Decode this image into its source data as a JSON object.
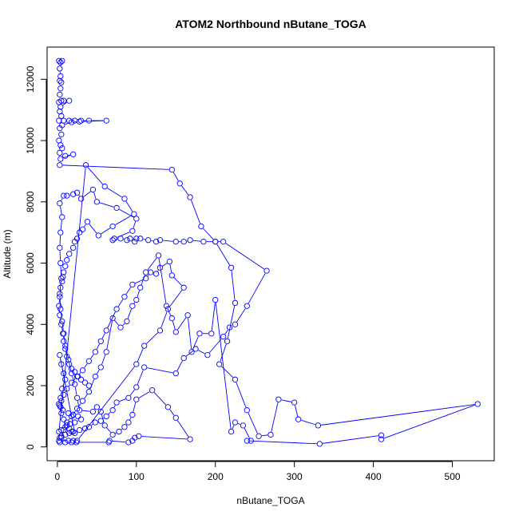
{
  "chart_data": {
    "type": "line",
    "title": "ATOM2 Northbound nButane_TOGA",
    "xlabel": "nButane_TOGA",
    "ylabel": "Altitude (m)",
    "xlim": [
      -13,
      553
    ],
    "ylim": [
      -450,
      13050
    ],
    "xticks": [
      0,
      100,
      200,
      300,
      400,
      500
    ],
    "yticks": [
      0,
      2000,
      4000,
      6000,
      8000,
      10000,
      12000
    ],
    "grid": false,
    "marker": "open-circle",
    "color": "#0000ff",
    "series": [
      {
        "name": "nButane_TOGA",
        "points": [
          [
            2,
            12600
          ],
          [
            4,
            12550
          ],
          [
            6,
            12600
          ],
          [
            3,
            12350
          ],
          [
            4,
            12100
          ],
          [
            3,
            11950
          ],
          [
            5,
            11900
          ],
          [
            4,
            11700
          ],
          [
            3,
            11500
          ],
          [
            5,
            11300
          ],
          [
            2,
            11250
          ],
          [
            8,
            11300
          ],
          [
            15,
            11300
          ],
          [
            4,
            11100
          ],
          [
            3,
            10950
          ],
          [
            5,
            10800
          ],
          [
            2,
            10650
          ],
          [
            8,
            10650
          ],
          [
            15,
            10650
          ],
          [
            22,
            10650
          ],
          [
            30,
            10650
          ],
          [
            40,
            10650
          ],
          [
            62,
            10650
          ],
          [
            28,
            10620
          ],
          [
            18,
            10600
          ],
          [
            6,
            10500
          ],
          [
            3,
            10400
          ],
          [
            5,
            10200
          ],
          [
            2,
            10000
          ],
          [
            4,
            9850
          ],
          [
            6,
            9750
          ],
          [
            3,
            9600
          ],
          [
            10,
            9500
          ],
          [
            20,
            9550
          ],
          [
            4,
            9400
          ],
          [
            3,
            9200
          ],
          [
            145,
            9050
          ],
          [
            155,
            8600
          ],
          [
            168,
            8150
          ],
          [
            182,
            7200
          ],
          [
            200,
            6700
          ],
          [
            220,
            5850
          ],
          [
            225,
            4700
          ],
          [
            215,
            3450
          ],
          [
            205,
            2700
          ],
          [
            225,
            2200
          ],
          [
            240,
            1200
          ],
          [
            255,
            350
          ],
          [
            270,
            400
          ],
          [
            280,
            1550
          ],
          [
            300,
            1450
          ],
          [
            305,
            900
          ],
          [
            330,
            700
          ],
          [
            532,
            1400
          ],
          [
            410,
            250
          ],
          [
            410,
            380
          ],
          [
            332,
            100
          ],
          [
            240,
            200
          ],
          [
            245,
            200
          ],
          [
            235,
            700
          ],
          [
            225,
            800
          ],
          [
            220,
            500
          ],
          [
            200,
            4800
          ],
          [
            195,
            3700
          ],
          [
            180,
            3700
          ],
          [
            170,
            3100
          ],
          [
            165,
            4300
          ],
          [
            150,
            3750
          ],
          [
            145,
            4200
          ],
          [
            138,
            4600
          ],
          [
            128,
            6250
          ],
          [
            112,
            5700
          ],
          [
            105,
            5200
          ],
          [
            100,
            4800
          ],
          [
            95,
            4600
          ],
          [
            88,
            4100
          ],
          [
            80,
            3900
          ],
          [
            70,
            4200
          ],
          [
            62,
            3100
          ],
          [
            55,
            2600
          ],
          [
            48,
            2300
          ],
          [
            40,
            1800
          ],
          [
            32,
            1500
          ],
          [
            25,
            1250
          ],
          [
            18,
            1000
          ],
          [
            12,
            800
          ],
          [
            8,
            550
          ],
          [
            5,
            300
          ],
          [
            3,
            150
          ],
          [
            10,
            150
          ],
          [
            18,
            150
          ],
          [
            24,
            150
          ],
          [
            65,
            150
          ],
          [
            66,
            200
          ],
          [
            90,
            150
          ],
          [
            95,
            200
          ],
          [
            98,
            300
          ],
          [
            103,
            350
          ],
          [
            168,
            250
          ],
          [
            150,
            950
          ],
          [
            140,
            1300
          ],
          [
            120,
            1850
          ],
          [
            100,
            1550
          ],
          [
            95,
            1050
          ],
          [
            90,
            800
          ],
          [
            85,
            650
          ],
          [
            78,
            500
          ],
          [
            70,
            400
          ],
          [
            60,
            700
          ],
          [
            55,
            1150
          ],
          [
            50,
            1300
          ],
          [
            45,
            1150
          ],
          [
            28,
            1200
          ],
          [
            25,
            1600
          ],
          [
            22,
            2050
          ],
          [
            18,
            2400
          ],
          [
            14,
            2850
          ],
          [
            10,
            3300
          ],
          [
            8,
            3700
          ],
          [
            6,
            4100
          ],
          [
            4,
            4500
          ],
          [
            3,
            5000
          ],
          [
            5,
            5500
          ],
          [
            4,
            6000
          ],
          [
            3,
            6500
          ],
          [
            4,
            7000
          ],
          [
            6,
            7500
          ],
          [
            3,
            7950
          ],
          [
            8,
            8200
          ],
          [
            12,
            8200
          ],
          [
            20,
            8250
          ],
          [
            25,
            8300
          ],
          [
            30,
            8100
          ],
          [
            45,
            8400
          ],
          [
            50,
            8000
          ],
          [
            75,
            7800
          ],
          [
            100,
            7450
          ],
          [
            95,
            7050
          ],
          [
            72,
            6800
          ],
          [
            70,
            6750
          ],
          [
            80,
            6800
          ],
          [
            88,
            6750
          ],
          [
            92,
            6800
          ],
          [
            98,
            6700
          ],
          [
            100,
            6800
          ],
          [
            105,
            6800
          ],
          [
            115,
            6750
          ],
          [
            125,
            6700
          ],
          [
            130,
            6750
          ],
          [
            150,
            6700
          ],
          [
            160,
            6700
          ],
          [
            168,
            6750
          ],
          [
            185,
            6700
          ],
          [
            200,
            6700
          ],
          [
            210,
            6700
          ],
          [
            265,
            5750
          ],
          [
            240,
            4600
          ],
          [
            225,
            4000
          ],
          [
            218,
            3900
          ],
          [
            210,
            3600
          ],
          [
            190,
            3000
          ],
          [
            175,
            3200
          ],
          [
            160,
            2900
          ],
          [
            150,
            2400
          ],
          [
            110,
            2600
          ],
          [
            100,
            1950
          ],
          [
            90,
            1600
          ],
          [
            75,
            1450
          ],
          [
            70,
            1200
          ],
          [
            62,
            1000
          ],
          [
            55,
            850
          ],
          [
            48,
            800
          ],
          [
            40,
            650
          ],
          [
            35,
            600
          ],
          [
            28,
            550
          ],
          [
            20,
            500
          ],
          [
            15,
            450
          ],
          [
            10,
            400
          ],
          [
            5,
            350
          ],
          [
            3,
            300
          ],
          [
            2,
            200
          ],
          [
            14,
            200
          ],
          [
            20,
            200
          ],
          [
            25,
            200
          ],
          [
            100,
            2700
          ],
          [
            110,
            3300
          ],
          [
            130,
            3800
          ],
          [
            140,
            4500
          ],
          [
            160,
            5200
          ],
          [
            145,
            5600
          ],
          [
            142,
            6050
          ],
          [
            130,
            5850
          ],
          [
            125,
            5650
          ],
          [
            118,
            5700
          ],
          [
            112,
            5500
          ],
          [
            95,
            5300
          ],
          [
            85,
            4900
          ],
          [
            75,
            4500
          ],
          [
            62,
            3800
          ],
          [
            55,
            3450
          ],
          [
            48,
            3100
          ],
          [
            40,
            2800
          ],
          [
            32,
            2500
          ],
          [
            25,
            2300
          ],
          [
            18,
            2100
          ],
          [
            12,
            1900
          ],
          [
            8,
            1700
          ],
          [
            5,
            1500
          ],
          [
            3,
            1350
          ],
          [
            5,
            1100
          ],
          [
            8,
            900
          ],
          [
            12,
            700
          ],
          [
            15,
            600
          ],
          [
            18,
            500
          ],
          [
            22,
            450
          ],
          [
            3,
            3000
          ],
          [
            5,
            2700
          ],
          [
            8,
            2400
          ],
          [
            10,
            2200
          ],
          [
            6,
            1900
          ],
          [
            4,
            1600
          ],
          [
            2,
            1400
          ],
          [
            4,
            1300
          ],
          [
            7,
            1200
          ],
          [
            14,
            1100
          ],
          [
            20,
            1050
          ],
          [
            26,
            1000
          ],
          [
            30,
            900
          ],
          [
            22,
            800
          ],
          [
            16,
            750
          ],
          [
            10,
            650
          ],
          [
            5,
            550
          ],
          [
            2,
            500
          ],
          [
            36,
            9200
          ],
          [
            60,
            8500
          ],
          [
            85,
            8100
          ],
          [
            97,
            7600
          ],
          [
            70,
            7200
          ],
          [
            52,
            6900
          ],
          [
            38,
            7350
          ],
          [
            32,
            7100
          ],
          [
            28,
            7000
          ],
          [
            25,
            6800
          ],
          [
            22,
            6700
          ],
          [
            20,
            6500
          ],
          [
            15,
            6300
          ],
          [
            12,
            6100
          ],
          [
            10,
            5900
          ],
          [
            8,
            5700
          ],
          [
            7,
            5550
          ],
          [
            6,
            5400
          ],
          [
            4,
            5200
          ],
          [
            3,
            4900
          ],
          [
            2,
            4600
          ],
          [
            3,
            4300
          ],
          [
            5,
            4000
          ],
          [
            7,
            3700
          ],
          [
            8,
            3450
          ],
          [
            10,
            3200
          ],
          [
            12,
            2950
          ],
          [
            15,
            2700
          ],
          [
            18,
            2550
          ],
          [
            22,
            2450
          ],
          [
            26,
            2300
          ],
          [
            30,
            2200
          ],
          [
            35,
            2100
          ],
          [
            40,
            2000
          ]
        ]
      }
    ]
  }
}
